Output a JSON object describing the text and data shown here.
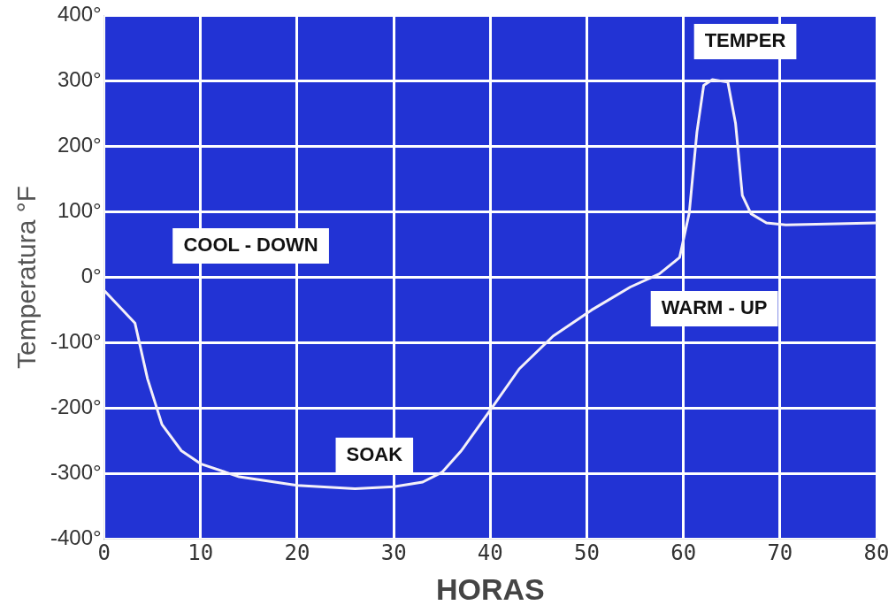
{
  "chart_data": {
    "type": "line",
    "xlabel": "HORAS",
    "ylabel": "Temperatura °F",
    "xlim": [
      0,
      80
    ],
    "xticks": [
      0,
      10,
      20,
      30,
      40,
      50,
      60,
      70,
      80
    ],
    "ylim": [
      -400,
      400
    ],
    "yticks": [
      {
        "value": -400,
        "label": "-400°"
      },
      {
        "value": -300,
        "label": "-300°"
      },
      {
        "value": -200,
        "label": "-200°"
      },
      {
        "value": -100,
        "label": "-100°"
      },
      {
        "value": 0,
        "label": "0°"
      },
      {
        "value": 100,
        "label": "100°"
      },
      {
        "value": 200,
        "label": "200°"
      },
      {
        "value": 300,
        "label": "300°"
      },
      {
        "value": 400,
        "label": "400°"
      }
    ],
    "grid": true,
    "legend": false,
    "marker": "none",
    "line_style": "solid",
    "series": [
      {
        "color": "#f4f0f8",
        "x": [
          0,
          3.2,
          4.5,
          6,
          8,
          10,
          14,
          20,
          26,
          30,
          33,
          35,
          37,
          40,
          43,
          46.5,
          50.5,
          54.5,
          57.5,
          59.6,
          60.6,
          61.4,
          62.1,
          63,
          64.6,
          65.4,
          66.1,
          67,
          68.6,
          70.6,
          80
        ],
        "values": [
          -20,
          -70,
          -155,
          -225,
          -265,
          -285,
          -305,
          -318,
          -323,
          -320,
          -313,
          -298,
          -265,
          -203,
          -140,
          -90,
          -50,
          -15,
          5,
          30,
          98,
          222,
          293,
          302,
          298,
          235,
          125,
          97,
          83,
          80,
          83
        ]
      }
    ],
    "annotations": [
      "COOL - DOWN",
      "SOAK",
      "WARM - UP",
      "TEMPER"
    ]
  }
}
